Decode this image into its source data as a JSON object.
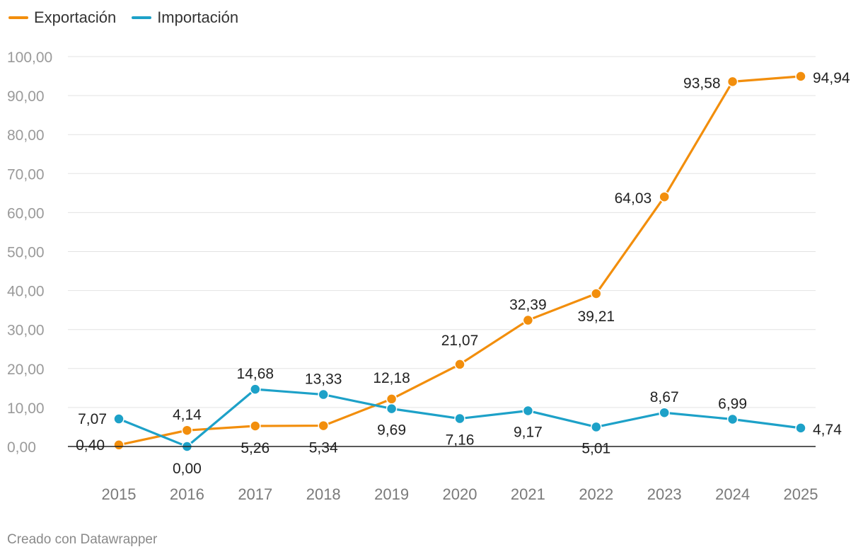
{
  "footer": {
    "credit": "Creado con Datawrapper"
  },
  "chart_data": {
    "type": "line",
    "title": "",
    "xlabel": "",
    "ylabel": "",
    "x": [
      "2015",
      "2016",
      "2017",
      "2018",
      "2019",
      "2020",
      "2021",
      "2022",
      "2023",
      "2024",
      "2025"
    ],
    "ylim": [
      0,
      100
    ],
    "yticks": [
      0,
      10,
      20,
      30,
      40,
      50,
      60,
      70,
      80,
      90,
      100
    ],
    "ytick_labels": [
      "0,00",
      "10,00",
      "20,00",
      "30,00",
      "40,00",
      "50,00",
      "60,00",
      "70,00",
      "80,00",
      "90,00",
      "100,00"
    ],
    "grid": true,
    "legend": "top-left",
    "series": [
      {
        "name": "Exportación",
        "color": "#f28e0c",
        "values": [
          0.4,
          4.14,
          5.26,
          5.34,
          12.18,
          21.07,
          32.39,
          39.21,
          64.03,
          93.58,
          94.94
        ],
        "labels": [
          "0,40",
          "4,14",
          "5,26",
          "5,34",
          "12,18",
          "21,07",
          "32,39",
          "39,21",
          "64,03",
          "93,58",
          "94,94"
        ]
      },
      {
        "name": "Importación",
        "color": "#1da1c8",
        "values": [
          7.07,
          0.0,
          14.68,
          13.33,
          9.69,
          7.16,
          9.17,
          5.01,
          8.67,
          6.99,
          4.74
        ],
        "labels": [
          "7,07",
          "0,00",
          "14,68",
          "13,33",
          "9,69",
          "7,16",
          "9,17",
          "5,01",
          "8,67",
          "6,99",
          "4,74"
        ]
      }
    ]
  }
}
